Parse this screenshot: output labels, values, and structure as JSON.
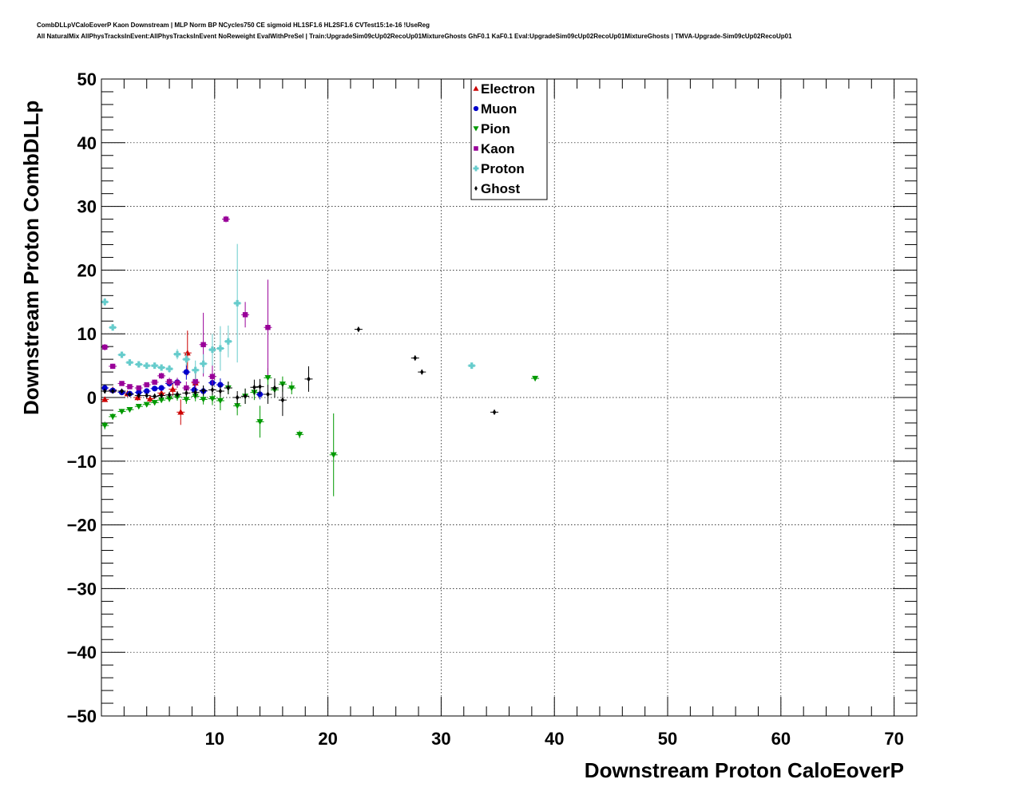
{
  "header": {
    "line1": "CombDLLpVCaloEoverP Kaon Downstream | MLP Norm BP NCycles750 CE sigmoid HL1SF1.6 HL2SF1.6 CVTest15:1e-16 !UseReg",
    "line2": "All NaturalMix AllPhysTracksInEvent:AllPhysTracksInEvent NoReweight EvalWithPreSel | Train:UpgradeSim09cUp02RecoUp01MixtureGhosts GhF0.1 KaF0.1 Eval:UpgradeSim09cUp02RecoUp01MixtureGhosts | TMVA-Upgrade-Sim09cUp02RecoUp01"
  },
  "chart_data": {
    "type": "scatter",
    "xlabel": "Downstream Proton CaloEoverP",
    "ylabel": "Downstream Proton CombDLLp",
    "xlim": [
      0,
      72
    ],
    "ylim": [
      -50,
      50
    ],
    "x_ticks": [
      10,
      20,
      30,
      40,
      50,
      60,
      70
    ],
    "y_ticks": [
      -50,
      -40,
      -30,
      -20,
      -10,
      0,
      10,
      20,
      30,
      40,
      50
    ],
    "x_tick_labels": [
      "10",
      "20",
      "30",
      "40",
      "50",
      "60",
      "70"
    ],
    "y_tick_labels": [
      "−50",
      "−40",
      "−30",
      "−20",
      "−10",
      "0",
      "10",
      "20",
      "30",
      "40",
      "50"
    ],
    "grid": true,
    "legend_position": "top-center",
    "series": [
      {
        "name": "Electron",
        "color": "#cc0000",
        "marker": "triangle-up",
        "points": [
          {
            "x": 0.3,
            "y": -0.3,
            "err": 0.4
          },
          {
            "x": 1.0,
            "y": 1.2,
            "err": 0.5
          },
          {
            "x": 2.3,
            "y": 0.6,
            "err": 0.5
          },
          {
            "x": 3.2,
            "y": 0.0,
            "err": 0.5
          },
          {
            "x": 4.3,
            "y": -0.2,
            "err": 0.6
          },
          {
            "x": 5.3,
            "y": 0.7,
            "err": 0.8
          },
          {
            "x": 6.3,
            "y": 1.3,
            "err": 1.0
          },
          {
            "x": 7.0,
            "y": -2.3,
            "err": 2.0
          },
          {
            "x": 7.6,
            "y": 7.0,
            "err": 3.5
          },
          {
            "x": 8.3,
            "y": 2.3,
            "err": 1.5
          }
        ]
      },
      {
        "name": "Muon",
        "color": "#0000cc",
        "marker": "circle",
        "points": [
          {
            "x": 0.3,
            "y": 1.5,
            "err": 0.3
          },
          {
            "x": 1.0,
            "y": 1.1,
            "err": 0.3
          },
          {
            "x": 1.8,
            "y": 0.8,
            "err": 0.3
          },
          {
            "x": 2.5,
            "y": 0.6,
            "err": 0.3
          },
          {
            "x": 3.3,
            "y": 0.8,
            "err": 0.3
          },
          {
            "x": 4.0,
            "y": 1.0,
            "err": 0.3
          },
          {
            "x": 4.7,
            "y": 1.4,
            "err": 0.4
          },
          {
            "x": 5.3,
            "y": 1.5,
            "err": 0.4
          },
          {
            "x": 6.0,
            "y": 2.2,
            "err": 0.5
          },
          {
            "x": 6.7,
            "y": 2.4,
            "err": 0.6
          },
          {
            "x": 7.5,
            "y": 4.0,
            "err": 1.2
          },
          {
            "x": 8.2,
            "y": 1.2,
            "err": 0.8
          },
          {
            "x": 9.0,
            "y": 1.0,
            "err": 0.8
          },
          {
            "x": 9.8,
            "y": 2.3,
            "err": 1.0
          },
          {
            "x": 10.5,
            "y": 2.0,
            "err": 1.0
          },
          {
            "x": 14.0,
            "y": 0.5,
            "err": 0.8
          }
        ]
      },
      {
        "name": "Pion",
        "color": "#009900",
        "marker": "triangle-down",
        "points": [
          {
            "x": 0.3,
            "y": -4.4,
            "err": 0.6
          },
          {
            "x": 1.0,
            "y": -3.0,
            "err": 0.5
          },
          {
            "x": 1.8,
            "y": -2.2,
            "err": 0.4
          },
          {
            "x": 2.5,
            "y": -1.9,
            "err": 0.4
          },
          {
            "x": 3.3,
            "y": -1.4,
            "err": 0.4
          },
          {
            "x": 4.0,
            "y": -1.1,
            "err": 0.4
          },
          {
            "x": 4.7,
            "y": -0.8,
            "err": 0.4
          },
          {
            "x": 5.3,
            "y": -0.4,
            "err": 0.4
          },
          {
            "x": 6.0,
            "y": -0.2,
            "err": 0.5
          },
          {
            "x": 6.7,
            "y": 0.1,
            "err": 0.6
          },
          {
            "x": 7.5,
            "y": -0.3,
            "err": 0.7
          },
          {
            "x": 8.3,
            "y": 0.2,
            "err": 0.8
          },
          {
            "x": 9.0,
            "y": -0.3,
            "err": 0.8
          },
          {
            "x": 9.8,
            "y": -0.2,
            "err": 1.0
          },
          {
            "x": 10.5,
            "y": -0.5,
            "err": 1.5
          },
          {
            "x": 11.2,
            "y": 1.5,
            "err": 1.0
          },
          {
            "x": 12.0,
            "y": -1.3,
            "err": 1.5
          },
          {
            "x": 12.7,
            "y": 0.2,
            "err": 1.2
          },
          {
            "x": 13.5,
            "y": 0.8,
            "err": 1.2
          },
          {
            "x": 14.0,
            "y": -3.8,
            "err": 2.5
          },
          {
            "x": 14.7,
            "y": 3.1,
            "err": 1.5
          },
          {
            "x": 15.3,
            "y": 1.2,
            "err": 1.2
          },
          {
            "x": 16.0,
            "y": 2.1,
            "err": 1.2
          },
          {
            "x": 16.8,
            "y": 1.5,
            "err": 1.0
          },
          {
            "x": 17.5,
            "y": -5.8,
            "err": 0.6
          },
          {
            "x": 20.5,
            "y": -9.0,
            "err": 6.5
          },
          {
            "x": 38.3,
            "y": 3.0,
            "err": 0.4
          }
        ]
      },
      {
        "name": "Kaon",
        "color": "#990099",
        "marker": "square",
        "points": [
          {
            "x": 0.3,
            "y": 7.9,
            "err": 0.5
          },
          {
            "x": 1.0,
            "y": 4.9,
            "err": 0.4
          },
          {
            "x": 1.8,
            "y": 2.2,
            "err": 0.3
          },
          {
            "x": 2.5,
            "y": 1.7,
            "err": 0.3
          },
          {
            "x": 3.3,
            "y": 1.5,
            "err": 0.3
          },
          {
            "x": 4.0,
            "y": 2.0,
            "err": 0.3
          },
          {
            "x": 4.7,
            "y": 2.4,
            "err": 0.4
          },
          {
            "x": 5.3,
            "y": 3.4,
            "err": 0.5
          },
          {
            "x": 6.0,
            "y": 2.5,
            "err": 0.6
          },
          {
            "x": 6.7,
            "y": 2.3,
            "err": 0.8
          },
          {
            "x": 7.5,
            "y": 1.5,
            "err": 1.0
          },
          {
            "x": 8.3,
            "y": 2.5,
            "err": 1.2
          },
          {
            "x": 9.0,
            "y": 8.3,
            "err": 5.0
          },
          {
            "x": 9.8,
            "y": 3.3,
            "err": 2.0
          },
          {
            "x": 11.0,
            "y": 28.0,
            "err": 0.5
          },
          {
            "x": 12.7,
            "y": 13.0,
            "err": 2.0
          },
          {
            "x": 14.7,
            "y": 11.0,
            "err": 7.5
          }
        ]
      },
      {
        "name": "Proton",
        "color": "#66cccc",
        "marker": "cross",
        "points": [
          {
            "x": 0.3,
            "y": 15.0,
            "err": 0.6
          },
          {
            "x": 1.0,
            "y": 11.0,
            "err": 0.5
          },
          {
            "x": 1.8,
            "y": 6.7,
            "err": 0.4
          },
          {
            "x": 2.5,
            "y": 5.5,
            "err": 0.4
          },
          {
            "x": 3.3,
            "y": 5.2,
            "err": 0.4
          },
          {
            "x": 4.0,
            "y": 5.0,
            "err": 0.4
          },
          {
            "x": 4.7,
            "y": 5.0,
            "err": 0.4
          },
          {
            "x": 5.3,
            "y": 4.7,
            "err": 0.5
          },
          {
            "x": 6.0,
            "y": 4.5,
            "err": 0.6
          },
          {
            "x": 6.7,
            "y": 6.8,
            "err": 0.8
          },
          {
            "x": 7.5,
            "y": 6.0,
            "err": 1.0
          },
          {
            "x": 8.3,
            "y": 4.3,
            "err": 1.5
          },
          {
            "x": 9.0,
            "y": 5.3,
            "err": 1.5
          },
          {
            "x": 9.8,
            "y": 7.5,
            "err": 2.5
          },
          {
            "x": 10.5,
            "y": 7.7,
            "err": 3.5
          },
          {
            "x": 11.2,
            "y": 8.8,
            "err": 2.5
          },
          {
            "x": 12.0,
            "y": 14.8,
            "err": 9.3
          },
          {
            "x": 32.7,
            "y": 5.0,
            "err": 0.4
          }
        ]
      },
      {
        "name": "Ghost",
        "color": "#000000",
        "marker": "diamond",
        "points": [
          {
            "x": 0.3,
            "y": 1.0,
            "err": 0.3
          },
          {
            "x": 1.0,
            "y": 1.0,
            "err": 0.3
          },
          {
            "x": 1.8,
            "y": 1.0,
            "err": 0.3
          },
          {
            "x": 2.5,
            "y": 0.5,
            "err": 0.3
          },
          {
            "x": 3.3,
            "y": 0.3,
            "err": 0.3
          },
          {
            "x": 4.0,
            "y": 0.3,
            "err": 0.3
          },
          {
            "x": 4.7,
            "y": 0.2,
            "err": 0.4
          },
          {
            "x": 5.3,
            "y": 0.3,
            "err": 0.4
          },
          {
            "x": 6.0,
            "y": 0.4,
            "err": 0.5
          },
          {
            "x": 6.7,
            "y": 0.5,
            "err": 0.5
          },
          {
            "x": 7.5,
            "y": 0.7,
            "err": 0.6
          },
          {
            "x": 8.3,
            "y": 0.8,
            "err": 0.7
          },
          {
            "x": 9.0,
            "y": 1.1,
            "err": 0.8
          },
          {
            "x": 9.8,
            "y": 1.2,
            "err": 0.8
          },
          {
            "x": 10.5,
            "y": 1.0,
            "err": 0.9
          },
          {
            "x": 11.2,
            "y": 1.5,
            "err": 1.0
          },
          {
            "x": 12.0,
            "y": 0.0,
            "err": 1.0
          },
          {
            "x": 12.7,
            "y": 0.2,
            "err": 1.2
          },
          {
            "x": 13.5,
            "y": 1.6,
            "err": 1.2
          },
          {
            "x": 14.0,
            "y": 1.7,
            "err": 1.2
          },
          {
            "x": 14.7,
            "y": 0.5,
            "err": 1.5
          },
          {
            "x": 15.3,
            "y": 1.5,
            "err": 1.5
          },
          {
            "x": 16.0,
            "y": -0.4,
            "err": 2.5
          },
          {
            "x": 18.3,
            "y": 2.9,
            "err": 2.0
          },
          {
            "x": 22.7,
            "y": 10.7,
            "err": 0.4
          },
          {
            "x": 27.7,
            "y": 6.2,
            "err": 0.4
          },
          {
            "x": 28.3,
            "y": 4.0,
            "err": 0.4
          },
          {
            "x": 34.7,
            "y": -2.3,
            "err": 0.4
          }
        ]
      }
    ]
  }
}
